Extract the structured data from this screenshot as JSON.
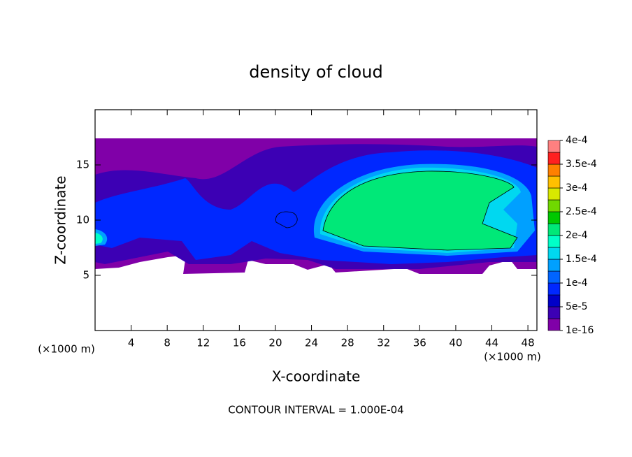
{
  "chart_data": {
    "type": "contour",
    "title": "density of cloud",
    "x_label": "X-coordinate",
    "y_label": "Z-coordinate",
    "x_unit_label": "(×1000 m)",
    "y_unit_label": "(×1000 m)",
    "annotation": "CONTOUR INTERVAL = 1.000E-04",
    "xlim": [
      0,
      49
    ],
    "xticks": [
      4,
      8,
      12,
      16,
      20,
      24,
      28,
      32,
      36,
      40,
      44,
      48
    ],
    "ylim": [
      0,
      20
    ],
    "yticks": [
      5,
      10,
      15
    ],
    "colorbar": {
      "colors": [
        "#8000a8",
        "#3c00b4",
        "#0000c8",
        "#0028ff",
        "#0064ff",
        "#00a0ff",
        "#00d8f0",
        "#00ffc8",
        "#00e878",
        "#00c800",
        "#70d800",
        "#d8e800",
        "#ffc000",
        "#ff8000",
        "#ff2020",
        "#ff8080"
      ],
      "ticks": [
        {
          "value": 1e-16,
          "label": "1e-16"
        },
        {
          "value": 5e-05,
          "label": "5e-5"
        },
        {
          "value": 0.0001,
          "label": "1e-4"
        },
        {
          "value": 0.00015,
          "label": "1.5e-4"
        },
        {
          "value": 0.0002,
          "label": "2e-4"
        },
        {
          "value": 0.00025,
          "label": "2.5e-4"
        },
        {
          "value": 0.0003,
          "label": "3e-4"
        },
        {
          "value": 0.00035,
          "label": "3.5e-4"
        },
        {
          "value": 0.0004,
          "label": "4e-4"
        }
      ]
    }
  }
}
